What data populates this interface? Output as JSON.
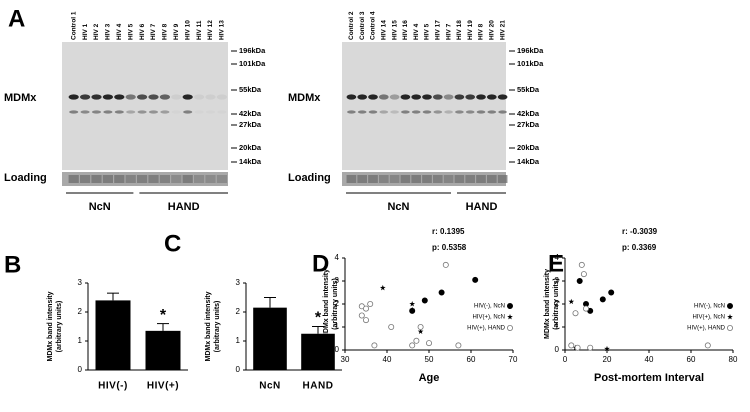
{
  "blots": [
    {
      "panel": "A",
      "row_label": "MDMx",
      "loading_label": "Loading",
      "lanes": [
        "Control 1",
        "HIV 1",
        "HIV 2",
        "HIV 3",
        "HIV 4",
        "HIV 5",
        "HIV 6",
        "HIV 7",
        "HIV 8",
        "HIV 9",
        "HIV 10",
        "HIV 11",
        "HIV 12",
        "HIV 13"
      ],
      "markers": [
        "196kDa",
        "101kDa",
        "55kDa",
        "42kDa",
        "27kDa",
        "20kDa",
        "14kDa"
      ],
      "groups": [
        "NcN",
        "HAND"
      ]
    },
    {
      "row_label": "MDMx",
      "loading_label": "Loading",
      "lanes": [
        "Control 2",
        "Control 3",
        "Control 4",
        "HIV 14",
        "HIV 15",
        "HIV 16",
        "HIV 4",
        "HIV 5",
        "HIV 17",
        "HIV 7",
        "HIV 18",
        "HIV 19",
        "HIV 8",
        "HIV 20",
        "HIV 21"
      ],
      "markers": [
        "196kDa",
        "101kDa",
        "55kDa",
        "42kDa",
        "27kDa",
        "20kDa",
        "14kDa"
      ],
      "groups": [
        "NcN",
        "HAND"
      ]
    }
  ],
  "chart_data": [
    {
      "type": "bar",
      "panel": "B",
      "ylabel": [
        "MDMx band intensity",
        "(arbitrary units)"
      ],
      "categories": [
        "HIV(-)",
        "HIV(+)"
      ],
      "values": [
        2.4,
        1.35
      ],
      "errors": [
        0.25,
        0.25
      ],
      "color": "#000000",
      "ylim": [
        0,
        3
      ],
      "yticks": [
        0,
        1,
        2,
        3
      ],
      "annotations": [
        {
          "text": "*",
          "x": "HIV(+)"
        }
      ]
    },
    {
      "type": "bar",
      "panel": "C",
      "ylabel": [
        "MDMx band intensity",
        "(arbitrary units)"
      ],
      "categories": [
        "NcN",
        "HAND"
      ],
      "values": [
        2.15,
        1.25
      ],
      "errors": [
        0.35,
        0.25
      ],
      "color": "#000000",
      "ylim": [
        0,
        3
      ],
      "yticks": [
        0,
        1,
        2,
        3
      ],
      "annotations": [
        {
          "text": "*",
          "x": "HAND"
        }
      ]
    },
    {
      "type": "scatter",
      "panel": "D",
      "ylabel": [
        "MDMx band intensity",
        "(arbitrary units)"
      ],
      "xlabel": "Age",
      "annotations": [
        "r: 0.1395",
        "p: 0.5358"
      ],
      "xlim": [
        30,
        70
      ],
      "xticks": [
        30,
        40,
        50,
        60,
        70
      ],
      "ylim": [
        0,
        4
      ],
      "yticks": [
        0,
        1,
        2,
        3,
        4
      ],
      "legend": "right",
      "series": [
        {
          "name": "HIV(-), NcN",
          "marker": "circle-filled",
          "color": "#000000",
          "x": [
            46,
            49,
            53,
            61
          ],
          "values": [
            1.7,
            2.15,
            2.5,
            3.05
          ]
        },
        {
          "name": "HIV(+), NcN",
          "marker": "star",
          "color": "#000000",
          "x": [
            39,
            46,
            46,
            48
          ],
          "values": [
            2.7,
            2.0,
            1.75,
            0.8
          ]
        },
        {
          "name": "HIV(+), HAND",
          "marker": "circle-open",
          "color": "#000000",
          "x": [
            34,
            34,
            35,
            35,
            36,
            41,
            37,
            47,
            48,
            54,
            46,
            50,
            57
          ],
          "values": [
            1.9,
            1.5,
            1.8,
            1.3,
            2.0,
            1.0,
            0.2,
            0.4,
            1.0,
            3.7,
            0.2,
            0.3,
            0.2
          ]
        }
      ]
    },
    {
      "type": "scatter",
      "panel": "E",
      "ylabel": [
        "MDMx band intensity",
        "(arbitrary units)"
      ],
      "xlabel": "Post-mortem Interval",
      "annotations": [
        "r: -0.3039",
        "p: 0.3369"
      ],
      "xlim": [
        0,
        80
      ],
      "xticks": [
        0,
        20,
        40,
        60,
        80
      ],
      "ylim": [
        0,
        4
      ],
      "yticks": [
        0,
        1,
        2,
        3,
        4
      ],
      "legend": "right",
      "series": [
        {
          "name": "HIV(-), NcN",
          "marker": "circle-filled",
          "color": "#000000",
          "x": [
            7,
            12,
            18,
            22,
            10
          ],
          "values": [
            3.0,
            1.7,
            2.2,
            2.5,
            2.0
          ]
        },
        {
          "name": "HIV(+), NcN",
          "marker": "star",
          "color": "#000000",
          "x": [
            3,
            5,
            20
          ],
          "values": [
            2.1,
            0.1,
            0.05
          ]
        },
        {
          "name": "HIV(+), HAND",
          "marker": "circle-open",
          "color": "#000000",
          "x": [
            8,
            9,
            5,
            10,
            3,
            6,
            12,
            68
          ],
          "values": [
            3.7,
            3.3,
            1.6,
            1.8,
            0.2,
            0.1,
            0.1,
            0.2
          ]
        }
      ]
    }
  ]
}
